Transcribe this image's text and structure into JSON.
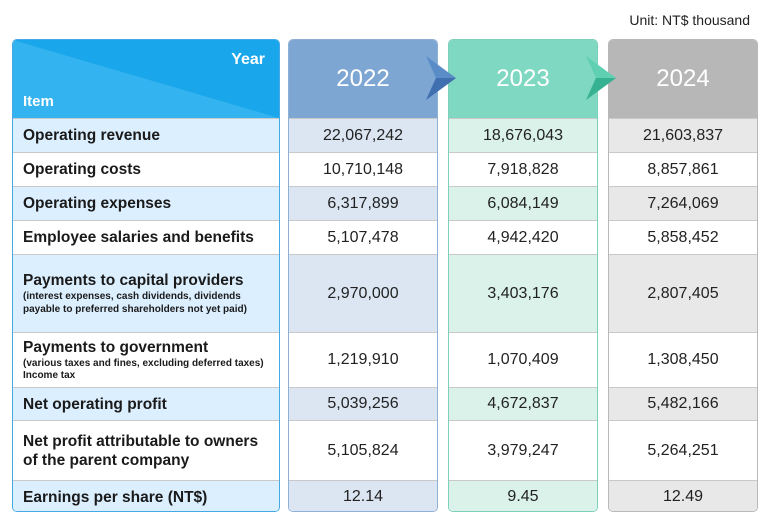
{
  "unit": "Unit: NT$ thousand",
  "header": {
    "year_label": "Year",
    "item_label": "Item"
  },
  "years": [
    "2022",
    "2023",
    "2024"
  ],
  "colors": {
    "item_header": "#33b3ef",
    "y2022": "#7ea6d3",
    "y2023": "#7fd8c1",
    "y2024": "#b7b7b7"
  },
  "rows": [
    {
      "label": "Operating revenue",
      "sub": "",
      "values": [
        "22,067,242",
        "18,676,043",
        "21,603,837"
      ]
    },
    {
      "label": "Operating costs",
      "sub": "",
      "values": [
        "10,710,148",
        "7,918,828",
        "8,857,861"
      ]
    },
    {
      "label": "Operating expenses",
      "sub": "",
      "values": [
        "6,317,899",
        "6,084,149",
        "7,264,069"
      ]
    },
    {
      "label": "Employee salaries and benefits",
      "sub": "",
      "values": [
        "5,107,478",
        "4,942,420",
        "5,858,452"
      ]
    },
    {
      "label": "Payments to capital providers",
      "sub": "(interest expenses, cash dividends, dividends payable to preferred shareholders not yet paid)",
      "values": [
        "2,970,000",
        "3,403,176",
        "2,807,405"
      ]
    },
    {
      "label": "Payments to government",
      "sub": "(various taxes and fines, excluding deferred taxes) Income tax",
      "values": [
        "1,219,910",
        "1,070,409",
        "1,308,450"
      ]
    },
    {
      "label": "Net operating profit",
      "sub": "",
      "values": [
        "5,039,256",
        "4,672,837",
        "5,482,166"
      ]
    },
    {
      "label": "Net profit attributable to owners of the parent company",
      "sub": "",
      "values": [
        "5,105,824",
        "3,979,247",
        "5,264,251"
      ]
    },
    {
      "label": "Earnings per share (NT$)",
      "sub": "",
      "values": [
        "12.14",
        "9.45",
        "12.49"
      ]
    }
  ]
}
